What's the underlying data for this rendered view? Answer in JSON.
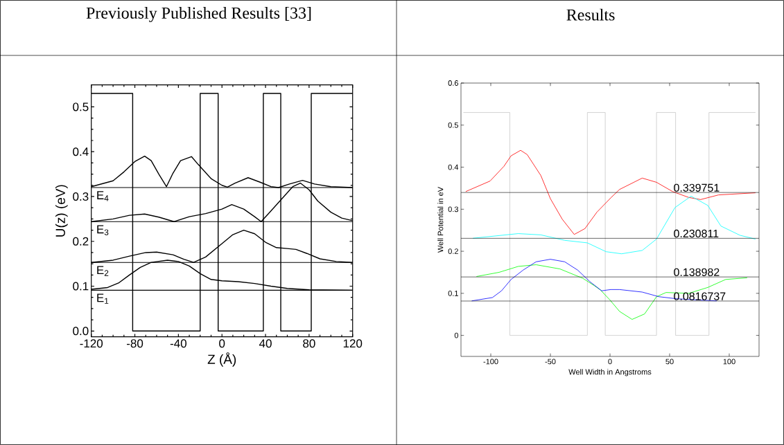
{
  "chart_data": [
    {
      "type": "line",
      "title": "Previously Published Results [33]",
      "xlabel": "Z (Å)",
      "ylabel": "U(z)  (eV)",
      "xlim": [
        -120,
        120
      ],
      "ylim": [
        -0.013,
        0.549
      ],
      "xticks": [
        -120,
        -80,
        -40,
        0,
        40,
        80,
        120
      ],
      "yticks": [
        {
          "value": 0,
          "label": "0.0"
        },
        {
          "value": 0.1,
          "label": "0.1"
        },
        {
          "value": 0.2,
          "label": "0.2"
        },
        {
          "value": 0.3,
          "label": "0.3"
        },
        {
          "value": 0.4,
          "label": "0.4"
        },
        {
          "value": 0.5,
          "label": "0.5"
        }
      ],
      "series": [
        {
          "color": "#000000",
          "x": [
            -120,
            -82,
            -82,
            -20,
            -20,
            -3.5,
            -3.5,
            38,
            38,
            54,
            54,
            82,
            82,
            120
          ],
          "values": [
            0.53,
            0.53,
            0,
            0,
            0.53,
            0.53,
            0,
            0,
            0.53,
            0.53,
            0,
            0,
            0.53,
            0.53
          ]
        },
        {
          "color": "#000000",
          "x": [
            -120,
            -105,
            -95,
            -85,
            -75,
            -65,
            -50,
            -40,
            -30,
            -20,
            -10,
            0,
            15,
            30,
            45,
            60,
            80,
            120
          ],
          "values": [
            0.093,
            0.097,
            0.107,
            0.125,
            0.142,
            0.153,
            0.158,
            0.155,
            0.145,
            0.128,
            0.115,
            0.112,
            0.11,
            0.106,
            0.1,
            0.095,
            0.092,
            0.091
          ]
        },
        {
          "color": "#000000",
          "x": [
            -120,
            -100,
            -85,
            -70,
            -60,
            -45,
            -35,
            -26,
            -15,
            0,
            10,
            20,
            30,
            40,
            50,
            60,
            68,
            78,
            90,
            105,
            120
          ],
          "values": [
            0.153,
            0.158,
            0.167,
            0.175,
            0.176,
            0.17,
            0.16,
            0.153,
            0.165,
            0.195,
            0.215,
            0.225,
            0.217,
            0.198,
            0.186,
            0.184,
            0.182,
            0.173,
            0.161,
            0.155,
            0.153
          ]
        },
        {
          "color": "#000000",
          "x": [
            -120,
            -100,
            -85,
            -71,
            -58,
            -44,
            -30,
            -15,
            0,
            9,
            20,
            30,
            36,
            45,
            55,
            65,
            72,
            80,
            88,
            100,
            110,
            120
          ],
          "values": [
            0.244,
            0.25,
            0.258,
            0.261,
            0.254,
            0.244,
            0.255,
            0.262,
            0.272,
            0.282,
            0.272,
            0.255,
            0.244,
            0.268,
            0.295,
            0.322,
            0.33,
            0.315,
            0.29,
            0.265,
            0.252,
            0.246
          ]
        },
        {
          "color": "#000000",
          "x": [
            -120,
            -100,
            -90,
            -80,
            -71,
            -65,
            -58,
            -51,
            -45,
            -38,
            -28,
            -22,
            -10,
            0,
            5,
            12,
            24,
            35,
            45,
            52,
            62,
            74,
            85,
            100,
            120
          ],
          "values": [
            0.322,
            0.335,
            0.355,
            0.378,
            0.39,
            0.38,
            0.35,
            0.322,
            0.352,
            0.38,
            0.389,
            0.372,
            0.34,
            0.325,
            0.321,
            0.33,
            0.342,
            0.332,
            0.322,
            0.32,
            0.328,
            0.336,
            0.328,
            0.322,
            0.32
          ]
        }
      ],
      "ref_lines": [
        {
          "axis": "y",
          "value": 0.091,
          "label": "E$_{1}$",
          "color": "#000000"
        },
        {
          "axis": "y",
          "value": 0.153,
          "label": "E$_{2}$",
          "color": "#000000"
        },
        {
          "axis": "y",
          "value": 0.244,
          "label": "E$_{3}$",
          "color": "#000000"
        },
        {
          "axis": "y",
          "value": 0.32,
          "label": "E$_{4}$",
          "color": "#000000"
        }
      ]
    },
    {
      "type": "line",
      "title": "Results",
      "xlabel": "Well Width in Angstroms",
      "ylabel": "Well Potential in eV",
      "xlim": [
        -125,
        125
      ],
      "ylim": [
        -0.05,
        0.6
      ],
      "xticks": [
        -100,
        -50,
        0,
        50,
        100
      ],
      "yticks": [
        0,
        0.1,
        0.2,
        0.3,
        0.4,
        0.5,
        0.6
      ],
      "series": [
        {
          "color": "#c8c8c8",
          "x": [
            -123,
            -84,
            -84,
            -19,
            -19,
            -4,
            -4,
            39,
            39,
            55,
            55,
            83,
            83,
            122
          ],
          "values": [
            0.53,
            0.53,
            0,
            0,
            0.53,
            0.53,
            0,
            0,
            0.53,
            0.53,
            0,
            0,
            0.53,
            0.53
          ]
        },
        {
          "color": "#ff0000",
          "x": [
            -121,
            -100.6,
            -89,
            -83,
            -75,
            -69.5,
            -58,
            -50,
            -40,
            -30,
            -21,
            -11,
            1,
            8,
            27,
            39,
            52.5,
            66,
            76,
            91,
            122
          ],
          "values": [
            0.342,
            0.367,
            0.402,
            0.427,
            0.44,
            0.43,
            0.38,
            0.325,
            0.276,
            0.24,
            0.254,
            0.293,
            0.328,
            0.347,
            0.374,
            0.364,
            0.342,
            0.328,
            0.323,
            0.334,
            0.339
          ]
        },
        {
          "color": "#00ffff",
          "x": [
            -115,
            -77,
            -58,
            -38,
            -19,
            -3.3,
            9.7,
            27,
            39,
            54.5,
            68,
            82,
            93,
            109,
            122
          ],
          "values": [
            0.231,
            0.242,
            0.239,
            0.226,
            0.22,
            0.199,
            0.194,
            0.202,
            0.229,
            0.304,
            0.331,
            0.309,
            0.26,
            0.238,
            0.229
          ]
        },
        {
          "color": "#00ff00",
          "x": [
            -112,
            -93,
            -77,
            -62,
            -42,
            -23,
            -13,
            -8,
            0,
            8,
            18.5,
            29,
            39,
            47,
            66,
            82,
            97,
            115
          ],
          "values": [
            0.14,
            0.15,
            0.164,
            0.168,
            0.158,
            0.136,
            0.118,
            0.108,
            0.084,
            0.057,
            0.038,
            0.051,
            0.092,
            0.102,
            0.1,
            0.114,
            0.133,
            0.137
          ]
        },
        {
          "color": "#0000ff",
          "x": [
            -116,
            -98.6,
            -91,
            -83,
            -73,
            -62,
            -50,
            -38,
            -27,
            -17,
            -7,
            0.6,
            8,
            27,
            41,
            56,
            89.5
          ],
          "values": [
            0.082,
            0.09,
            0.106,
            0.133,
            0.155,
            0.175,
            0.181,
            0.175,
            0.155,
            0.128,
            0.106,
            0.109,
            0.109,
            0.103,
            0.092,
            0.087,
            0.082
          ]
        }
      ],
      "ref_lines": [
        {
          "axis": "y",
          "value": 0.339751,
          "label": "0.339751",
          "color": "#000000"
        },
        {
          "axis": "y",
          "value": 0.230811,
          "label": "0.230811",
          "color": "#000000"
        },
        {
          "axis": "y",
          "value": 0.138982,
          "label": "0.138982",
          "color": "#000000"
        },
        {
          "axis": "y",
          "value": 0.0816737,
          "label": "0.0816737",
          "color": "#000000"
        }
      ]
    }
  ]
}
